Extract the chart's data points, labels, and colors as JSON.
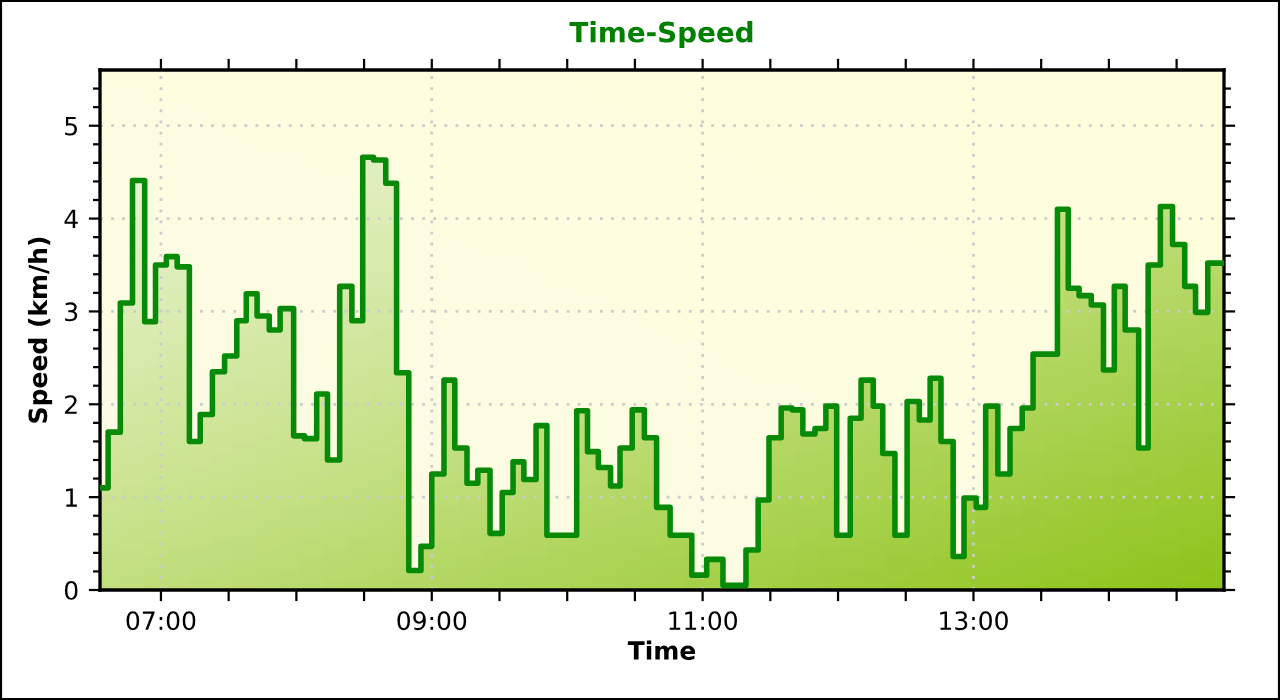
{
  "chart_data": {
    "type": "step",
    "title": "Time-Speed",
    "xlabel": "Time",
    "ylabel": "Speed (km/h)",
    "x": [
      6.55,
      6.61,
      6.7,
      6.79,
      6.88,
      6.96,
      7.04,
      7.12,
      7.21,
      7.29,
      7.38,
      7.47,
      7.56,
      7.63,
      7.71,
      7.8,
      7.88,
      7.98,
      8.06,
      8.15,
      8.23,
      8.32,
      8.41,
      8.49,
      8.57,
      8.66,
      8.74,
      8.83,
      8.92,
      9.0,
      9.09,
      9.17,
      9.26,
      9.34,
      9.43,
      9.52,
      9.6,
      9.68,
      9.77,
      9.85,
      10.07,
      10.15,
      10.23,
      10.32,
      10.39,
      10.48,
      10.57,
      10.66,
      10.76,
      10.92,
      11.03,
      11.15,
      11.32,
      11.41,
      11.49,
      11.58,
      11.66,
      11.74,
      11.83,
      11.91,
      11.99,
      12.09,
      12.17,
      12.26,
      12.33,
      12.42,
      12.51,
      12.6,
      12.68,
      12.76,
      12.85,
      12.93,
      13.02,
      13.09,
      13.18,
      13.27,
      13.36,
      13.44,
      13.62,
      13.7,
      13.78,
      13.87,
      13.96,
      14.04,
      14.12,
      14.22,
      14.29,
      14.38,
      14.47,
      14.56,
      14.64,
      14.73,
      14.85
    ],
    "series": [
      {
        "color": "#078a07",
        "values": [
          1.1,
          1.7,
          3.09,
          4.41,
          2.89,
          3.5,
          3.59,
          3.48,
          1.6,
          1.89,
          2.35,
          2.52,
          2.9,
          3.19,
          2.95,
          2.8,
          3.03,
          1.66,
          1.63,
          2.11,
          1.4,
          3.27,
          2.9,
          4.66,
          4.63,
          4.38,
          2.34,
          0.21,
          0.47,
          1.25,
          2.26,
          1.53,
          1.15,
          1.29,
          0.61,
          1.05,
          1.38,
          1.19,
          1.77,
          0.59,
          1.93,
          1.49,
          1.32,
          1.12,
          1.53,
          1.94,
          1.64,
          0.89,
          0.59,
          0.16,
          0.33,
          0.05,
          0.43,
          0.97,
          1.64,
          1.96,
          1.94,
          1.68,
          1.74,
          1.98,
          0.59,
          1.85,
          2.26,
          1.98,
          1.47,
          0.59,
          2.03,
          1.83,
          2.28,
          1.6,
          0.36,
          0.99,
          0.89,
          1.98,
          1.25,
          1.74,
          1.96,
          2.54,
          4.1,
          3.25,
          3.17,
          3.07,
          2.37,
          3.27,
          2.8,
          1.53,
          3.5,
          4.13,
          3.72,
          3.27,
          2.99,
          3.52,
          3.52
        ]
      }
    ],
    "xlim": [
      6.55,
      14.85
    ],
    "xticks": [
      {
        "value": 7,
        "label": "07:00"
      },
      {
        "value": 7.5,
        "label": null
      },
      {
        "value": 8,
        "label": null
      },
      {
        "value": 8.5,
        "label": null
      },
      {
        "value": 9,
        "label": "09:00"
      },
      {
        "value": 9.5,
        "label": null
      },
      {
        "value": 10,
        "label": null
      },
      {
        "value": 10.5,
        "label": null
      },
      {
        "value": 11,
        "label": "11:00"
      },
      {
        "value": 11.5,
        "label": null
      },
      {
        "value": 12,
        "label": null
      },
      {
        "value": 12.5,
        "label": null
      },
      {
        "value": 13,
        "label": "13:00"
      },
      {
        "value": 13.5,
        "label": null
      },
      {
        "value": 14,
        "label": null
      },
      {
        "value": 14.5,
        "label": null
      }
    ],
    "ylim": [
      0,
      5.6
    ],
    "yticks": [
      0,
      {
        "value": 0.2,
        "label": null
      },
      {
        "value": 0.4,
        "label": null
      },
      {
        "value": 0.6,
        "label": null
      },
      {
        "value": 0.8,
        "label": null
      },
      1,
      {
        "value": 1.2,
        "label": null
      },
      {
        "value": 1.4,
        "label": null
      },
      {
        "value": 1.6,
        "label": null
      },
      {
        "value": 1.8,
        "label": null
      },
      2,
      {
        "value": 2.2,
        "label": null
      },
      {
        "value": 2.4,
        "label": null
      },
      {
        "value": 2.6,
        "label": null
      },
      {
        "value": 2.8,
        "label": null
      },
      3,
      {
        "value": 3.2,
        "label": null
      },
      {
        "value": 3.4,
        "label": null
      },
      {
        "value": 3.6,
        "label": null
      },
      {
        "value": 3.8,
        "label": null
      },
      4,
      {
        "value": 4.2,
        "label": null
      },
      {
        "value": 4.4,
        "label": null
      },
      {
        "value": 4.6,
        "label": null
      },
      {
        "value": 4.8,
        "label": null
      },
      5,
      {
        "value": 5.2,
        "label": null
      },
      {
        "value": 5.4,
        "label": null
      }
    ],
    "grid": true,
    "legend": false
  }
}
